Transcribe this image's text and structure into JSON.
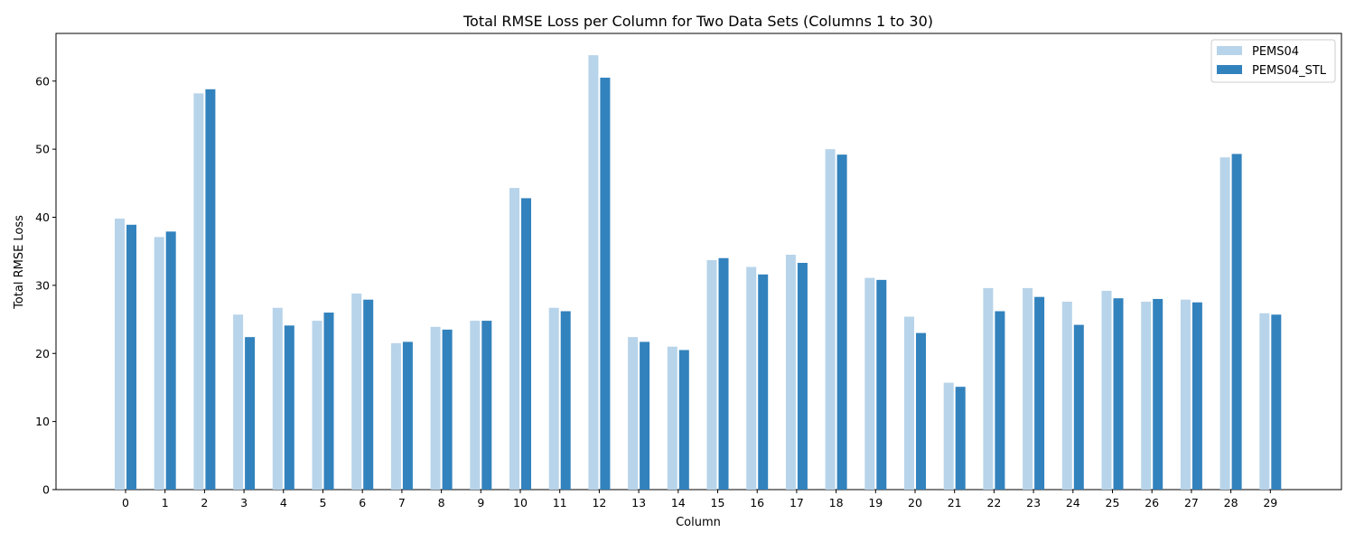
{
  "chart_data": {
    "type": "bar",
    "title": "Total RMSE Loss per Column for Two Data Sets (Columns 1 to 30)",
    "xlabel": "Column",
    "ylabel": "Total RMSE Loss",
    "categories": [
      "0",
      "1",
      "2",
      "3",
      "4",
      "5",
      "6",
      "7",
      "8",
      "9",
      "10",
      "11",
      "12",
      "13",
      "14",
      "15",
      "16",
      "17",
      "18",
      "19",
      "20",
      "21",
      "22",
      "23",
      "24",
      "25",
      "26",
      "27",
      "28",
      "29"
    ],
    "ylim": [
      0,
      67
    ],
    "yticks": [
      0,
      10,
      20,
      30,
      40,
      50,
      60
    ],
    "grid": false,
    "legend_position": "top-right",
    "series": [
      {
        "name": "PEMS04",
        "color": "#b7d4ea",
        "values": [
          39.8,
          37.1,
          58.2,
          25.7,
          26.7,
          24.8,
          28.8,
          21.5,
          23.9,
          24.8,
          44.3,
          26.7,
          63.8,
          22.4,
          21.0,
          33.7,
          32.7,
          34.5,
          50.0,
          31.1,
          25.4,
          15.7,
          29.6,
          29.6,
          27.6,
          29.2,
          27.6,
          27.9,
          48.8,
          25.9
        ]
      },
      {
        "name": "PEMS04_STL",
        "color": "#3282bd",
        "values": [
          38.9,
          37.9,
          58.8,
          22.4,
          24.1,
          26.0,
          27.9,
          21.7,
          23.5,
          24.8,
          42.8,
          26.2,
          60.5,
          21.7,
          20.5,
          34.0,
          31.6,
          33.3,
          49.2,
          30.8,
          23.0,
          15.1,
          26.2,
          28.3,
          24.2,
          28.1,
          28.0,
          27.5,
          49.3,
          25.7
        ]
      }
    ]
  }
}
